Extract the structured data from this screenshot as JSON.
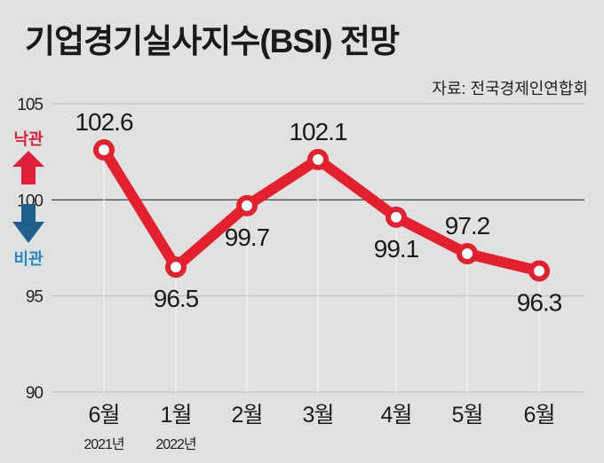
{
  "chart_data": {
    "type": "line",
    "title": "기업경기실사지수(BSI) 전망",
    "source": "자료: 전국경제인연합회",
    "categories": [
      "6월",
      "1월",
      "2월",
      "3월",
      "4월",
      "5월",
      "6월"
    ],
    "year_labels": [
      "2021년",
      "2022년",
      "",
      "",
      "",
      "",
      ""
    ],
    "values": [
      102.6,
      96.5,
      99.7,
      102.1,
      99.1,
      97.2,
      96.3
    ],
    "value_labels": [
      "102.6",
      "96.5",
      "99.7",
      "102.1",
      "99.1",
      "97.2",
      "96.3"
    ],
    "label_positions": [
      "above",
      "below",
      "below",
      "above",
      "below",
      "above",
      "below"
    ],
    "ylim": [
      90,
      105
    ],
    "yticks": [
      "90",
      "95",
      "100",
      "105"
    ],
    "baseline": 100,
    "optimistic_label": "낙관",
    "pessimistic_label": "비관",
    "colors": {
      "line": "#e5202e",
      "up": "#e0203a",
      "down": "#1f5f8b",
      "down_text": "#2a86c0"
    }
  }
}
